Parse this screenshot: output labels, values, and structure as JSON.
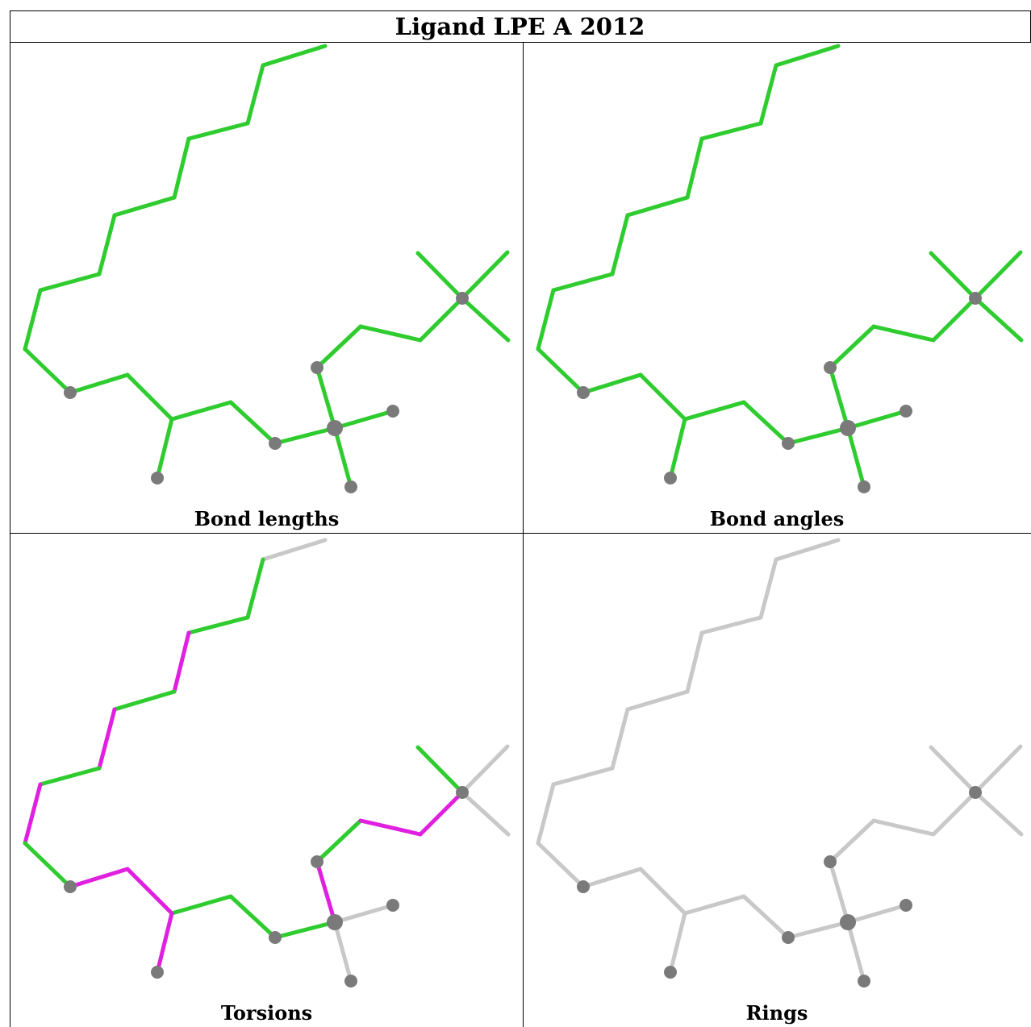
{
  "title": "Ligand LPE A 2012",
  "colors": {
    "ok": "#2ecc2e",
    "outlier": "#e020e0",
    "none": "#c8c8c8",
    "atom": "#7a7a7a"
  },
  "panels": [
    {
      "caption": "Bond lengths",
      "scheme": "ok"
    },
    {
      "caption": "Bond angles",
      "scheme": "ok"
    },
    {
      "caption": "Torsions",
      "scheme": "torsion"
    },
    {
      "caption": "Rings",
      "scheme": "none"
    }
  ],
  "molecule": {
    "bonds": [
      [
        0,
        1
      ],
      [
        1,
        2
      ],
      [
        2,
        3
      ],
      [
        3,
        4
      ],
      [
        4,
        5
      ],
      [
        5,
        6
      ],
      [
        6,
        7
      ],
      [
        7,
        8
      ],
      [
        8,
        9
      ],
      [
        9,
        10
      ],
      [
        10,
        11
      ],
      [
        11,
        12
      ],
      [
        12,
        13
      ],
      [
        13,
        14
      ],
      [
        13,
        15
      ],
      [
        14,
        16
      ],
      [
        16,
        17
      ],
      [
        17,
        18
      ],
      [
        17,
        19
      ],
      [
        17,
        20
      ],
      [
        17,
        21
      ],
      [
        18,
        22
      ],
      [
        22,
        23
      ],
      [
        23,
        24
      ],
      [
        24,
        25
      ],
      [
        25,
        26
      ],
      [
        25,
        27
      ],
      [
        25,
        28
      ],
      [
        25,
        29
      ]
    ],
    "torsion_outlier_bonds": [
      3,
      5,
      7,
      9,
      12,
      20,
      22,
      23
    ],
    "torsion_none_bonds": [
      0,
      14,
      18,
      19,
      26,
      27,
      28,
      29
    ],
    "spheres": [
      9,
      13,
      15,
      16,
      17,
      19,
      20,
      22,
      25
    ]
  }
}
